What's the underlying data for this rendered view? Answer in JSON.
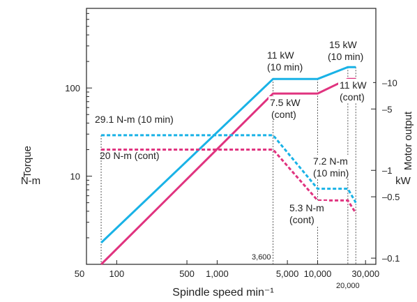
{
  "chart_data": {
    "type": "line",
    "xlabel": "Spindle speed min⁻¹",
    "left_axis_title": "Torque",
    "left_axis_unit": "N-m",
    "right_axis_title": "Motor output",
    "right_axis_unit": "kW",
    "x_scale": "log",
    "y_scale": "log",
    "xlim": [
      50,
      38000
    ],
    "left_ylim": [
      1,
      800
    ],
    "right_ylim": [
      0.085,
      70
    ],
    "grid": false,
    "colors": {
      "10min": "#19b2e6",
      "cont": "#e0337f"
    },
    "x_tick_labels": [
      {
        "value": 50,
        "label": "50"
      },
      {
        "value": 100,
        "label": "100"
      },
      {
        "value": 500,
        "label": "500"
      },
      {
        "value": 1000,
        "label": "1,000"
      },
      {
        "value": 5000,
        "label": "5,000"
      },
      {
        "value": 10000,
        "label": "10,000"
      },
      {
        "value": 30000,
        "label": "30,000"
      }
    ],
    "x_special_labels": [
      {
        "value": 3600,
        "label": "3,600"
      },
      {
        "value": 20000,
        "label": "20,000"
      }
    ],
    "left_tick_labels": [
      {
        "value": 10,
        "label": "10"
      },
      {
        "value": 100,
        "label": "100"
      }
    ],
    "right_tick_labels": [
      {
        "value": 0.1,
        "label": "0.1"
      },
      {
        "value": 0.5,
        "label": "0.5"
      },
      {
        "value": 1,
        "label": "1"
      },
      {
        "value": 5,
        "label": "5"
      },
      {
        "value": 10,
        "label": "10"
      }
    ],
    "series": [
      {
        "name": "Motor output (10 min)",
        "key": "10min",
        "axis": "right",
        "style": "solid",
        "x": [
          70,
          3600,
          10000,
          20000,
          24000
        ],
        "y": [
          0.15,
          11,
          11,
          15,
          15
        ]
      },
      {
        "name": "Motor output (cont)",
        "key": "cont",
        "axis": "right",
        "style": "solid",
        "x": [
          70,
          3600,
          10000,
          20000,
          24000
        ],
        "y": [
          0.085,
          7.5,
          7.5,
          11,
          11
        ]
      },
      {
        "name": "Torque (10 min)",
        "key": "10min",
        "axis": "left",
        "style": "dashed",
        "x": [
          70,
          3600,
          10000,
          20000,
          24000
        ],
        "y": [
          29.1,
          29.1,
          7.2,
          7.2,
          5.0
        ]
      },
      {
        "name": "Torque (cont)",
        "key": "cont",
        "axis": "left",
        "style": "dashed",
        "x": [
          70,
          3600,
          10000,
          20000,
          24000
        ],
        "y": [
          20,
          20,
          5.3,
          5.3,
          3.8
        ]
      }
    ],
    "annotations": [
      {
        "lines": [
          "11 kW",
          "(10 min)"
        ]
      },
      {
        "lines": [
          "15 kW",
          "(10 min)"
        ]
      },
      {
        "lines": [
          "7.5 kW",
          "(cont)"
        ]
      },
      {
        "lines": [
          "11 kW",
          "(cont)"
        ]
      },
      {
        "lines": [
          "29.1 N-m (10 min)"
        ]
      },
      {
        "lines": [
          "20 N-m (cont)"
        ]
      },
      {
        "lines": [
          "7.2 N-m",
          "(10 min)"
        ]
      },
      {
        "lines": [
          "5.3 N-m",
          "(cont)"
        ]
      }
    ],
    "guide_x_values": [
      70,
      3600,
      10000,
      20000,
      24000
    ]
  }
}
